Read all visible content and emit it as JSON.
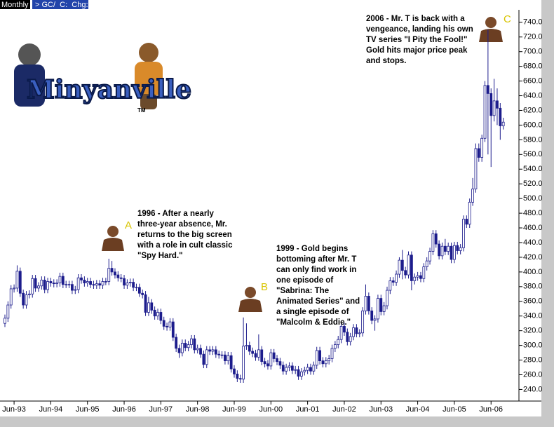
{
  "toolbar": {
    "period": "Monthly",
    "symbol": "> GC/  C:  Chg:"
  },
  "logo": {
    "name": "Minyanville",
    "trademark": "TM"
  },
  "chart_data": {
    "type": "candlestick",
    "color": "#1c1c8c",
    "categories": [
      null,
      null,
      null,
      "Jun-93",
      null,
      null,
      null,
      null,
      null,
      null,
      null,
      null,
      null,
      null,
      null,
      "Jun-94",
      null,
      null,
      null,
      null,
      null,
      null,
      null,
      null,
      null,
      null,
      null,
      "Jun-95",
      null,
      null,
      null,
      null,
      null,
      null,
      null,
      null,
      null,
      null,
      null,
      "Jun-96",
      null,
      null,
      null,
      null,
      null,
      null,
      null,
      null,
      null,
      null,
      null,
      "Jun-97",
      null,
      null,
      null,
      null,
      null,
      null,
      null,
      null,
      null,
      null,
      null,
      "Jun-98",
      null,
      null,
      null,
      null,
      null,
      null,
      null,
      null,
      null,
      null,
      null,
      "Jun-99",
      null,
      null,
      null,
      null,
      null,
      null,
      null,
      null,
      null,
      null,
      null,
      "Jun-00",
      null,
      null,
      null,
      null,
      null,
      null,
      null,
      null,
      null,
      null,
      null,
      "Jun-01",
      null,
      null,
      null,
      null,
      null,
      null,
      null,
      null,
      null,
      null,
      null,
      "Jun-02",
      null,
      null,
      null,
      null,
      null,
      null,
      null,
      null,
      null,
      null,
      null,
      "Jun-03",
      null,
      null,
      null,
      null,
      null,
      null,
      null,
      null,
      null,
      null,
      null,
      "Jun-04",
      null,
      null,
      null,
      null,
      null,
      null,
      null,
      null,
      null,
      null,
      null,
      "Jun-05",
      null,
      null,
      null,
      null,
      null,
      null,
      null,
      null,
      null,
      null,
      null,
      "Jun-06",
      null,
      null,
      null,
      null
    ],
    "open": [
      330,
      337,
      355,
      377,
      378,
      401,
      371,
      355,
      369,
      370,
      391,
      378,
      381,
      389,
      376,
      387,
      385,
      384,
      385,
      394,
      383,
      383,
      383,
      375,
      376,
      392,
      389,
      385,
      387,
      383,
      382,
      384,
      382,
      387,
      387,
      405,
      400,
      396,
      392,
      391,
      382,
      385,
      386,
      379,
      379,
      371,
      369,
      345,
      358,
      348,
      340,
      345,
      334,
      326,
      325,
      332,
      311,
      296,
      290,
      303,
      297,
      301,
      309,
      294,
      296,
      288,
      274,
      294,
      292,
      294,
      288,
      287,
      287,
      279,
      286,
      268,
      261,
      255,
      254,
      299,
      300,
      292,
      289,
      284,
      294,
      278,
      275,
      272,
      290,
      282,
      278,
      273,
      265,
      270,
      272,
      266,
      267,
      258,
      264,
      266,
      270,
      265,
      273,
      293,
      279,
      275,
      279,
      282,
      296,
      301,
      308,
      326,
      318,
      305,
      312,
      324,
      316,
      317,
      347,
      367,
      347,
      334,
      336,
      364,
      346,
      354,
      375,
      388,
      386,
      397,
      416,
      402,
      396,
      423,
      388,
      393,
      395,
      391,
      407,
      415,
      428,
      452,
      438,
      422,
      435,
      428,
      435,
      417,
      436,
      429,
      433,
      472,
      465,
      495,
      513,
      568,
      556,
      582,
      654,
      643,
      613,
      633,
      623,
      599
    ],
    "high": [
      342,
      360,
      382,
      383,
      409,
      406,
      376,
      374,
      375,
      396,
      396,
      386,
      394,
      394,
      392,
      392,
      390,
      390,
      399,
      399,
      388,
      388,
      388,
      381,
      397,
      397,
      394,
      392,
      392,
      388,
      389,
      389,
      392,
      392,
      418,
      415,
      405,
      401,
      397,
      396,
      390,
      391,
      391,
      384,
      384,
      376,
      374,
      366,
      363,
      353,
      350,
      350,
      339,
      331,
      337,
      337,
      316,
      301,
      308,
      308,
      306,
      314,
      314,
      301,
      301,
      293,
      299,
      299,
      299,
      299,
      293,
      292,
      292,
      291,
      291,
      273,
      266,
      260,
      338,
      330,
      305,
      297,
      294,
      315,
      299,
      283,
      280,
      295,
      295,
      287,
      283,
      278,
      275,
      277,
      277,
      272,
      272,
      269,
      271,
      275,
      275,
      278,
      298,
      298,
      284,
      284,
      287,
      301,
      306,
      313,
      331,
      331,
      323,
      317,
      329,
      329,
      322,
      352,
      383,
      372,
      352,
      341,
      369,
      369,
      359,
      380,
      393,
      393,
      402,
      420,
      430,
      407,
      428,
      428,
      398,
      400,
      400,
      412,
      420,
      433,
      457,
      457,
      443,
      440,
      445,
      440,
      440,
      441,
      441,
      438,
      477,
      477,
      500,
      528,
      575,
      575,
      587,
      660,
      730,
      650,
      663,
      650,
      630,
      610
    ],
    "low": [
      325,
      332,
      350,
      372,
      373,
      366,
      350,
      350,
      364,
      365,
      373,
      373,
      376,
      371,
      371,
      380,
      379,
      379,
      380,
      378,
      378,
      378,
      370,
      370,
      371,
      384,
      380,
      380,
      378,
      377,
      377,
      377,
      377,
      382,
      382,
      395,
      391,
      387,
      386,
      377,
      377,
      380,
      374,
      374,
      366,
      364,
      340,
      340,
      343,
      335,
      335,
      329,
      321,
      320,
      320,
      306,
      291,
      283,
      285,
      292,
      292,
      296,
      289,
      289,
      283,
      269,
      269,
      287,
      287,
      283,
      282,
      282,
      274,
      274,
      263,
      256,
      250,
      249,
      249,
      294,
      287,
      284,
      279,
      279,
      273,
      270,
      267,
      267,
      277,
      273,
      268,
      260,
      260,
      265,
      261,
      261,
      253,
      253,
      259,
      261,
      260,
      260,
      268,
      274,
      270,
      270,
      274,
      277,
      291,
      296,
      303,
      313,
      300,
      300,
      307,
      311,
      311,
      312,
      342,
      342,
      329,
      320,
      331,
      341,
      341,
      349,
      370,
      381,
      381,
      392,
      390,
      391,
      391,
      375,
      383,
      388,
      386,
      386,
      402,
      410,
      423,
      433,
      417,
      417,
      423,
      423,
      412,
      412,
      424,
      424,
      428,
      460,
      460,
      490,
      508,
      550,
      550,
      577,
      560,
      543,
      605,
      600,
      580,
      594
    ],
    "close": [
      337,
      355,
      377,
      378,
      401,
      371,
      355,
      369,
      370,
      391,
      378,
      381,
      389,
      376,
      387,
      385,
      384,
      385,
      394,
      383,
      383,
      383,
      375,
      376,
      392,
      389,
      385,
      387,
      383,
      382,
      384,
      382,
      387,
      387,
      405,
      400,
      396,
      392,
      391,
      382,
      385,
      386,
      379,
      379,
      371,
      369,
      345,
      358,
      348,
      340,
      345,
      334,
      326,
      325,
      332,
      311,
      296,
      290,
      303,
      297,
      301,
      309,
      294,
      296,
      288,
      274,
      294,
      292,
      294,
      288,
      287,
      287,
      279,
      286,
      268,
      261,
      255,
      254,
      299,
      300,
      292,
      289,
      284,
      294,
      278,
      275,
      272,
      290,
      282,
      278,
      273,
      265,
      270,
      272,
      266,
      267,
      258,
      264,
      266,
      270,
      265,
      273,
      293,
      279,
      275,
      279,
      282,
      296,
      301,
      308,
      326,
      318,
      305,
      312,
      324,
      316,
      317,
      347,
      367,
      347,
      334,
      336,
      364,
      346,
      354,
      375,
      388,
      386,
      397,
      416,
      402,
      396,
      423,
      388,
      393,
      395,
      391,
      407,
      415,
      428,
      452,
      438,
      422,
      435,
      428,
      435,
      417,
      436,
      429,
      433,
      472,
      465,
      495,
      513,
      568,
      556,
      582,
      654,
      643,
      613,
      633,
      623,
      599,
      604
    ],
    "ylim": [
      228,
      757
    ],
    "yticks": [
      {
        "value": 240,
        "label": "240.0"
      },
      {
        "value": 260,
        "label": "260.0"
      },
      {
        "value": 280,
        "label": "280.0"
      },
      {
        "value": 300,
        "label": "300.0"
      },
      {
        "value": 320,
        "label": "320.0"
      },
      {
        "value": 340,
        "label": "340.0"
      },
      {
        "value": 360,
        "label": "360.0"
      },
      {
        "value": 380,
        "label": "380.0"
      },
      {
        "value": 400,
        "label": "400.0"
      },
      {
        "value": 420,
        "label": "420.0"
      },
      {
        "value": 440,
        "label": "440.0"
      },
      {
        "value": 460,
        "label": "460.0"
      },
      {
        "value": 480,
        "label": "480.0"
      },
      {
        "value": 500,
        "label": "500.0"
      },
      {
        "value": 520,
        "label": "520.0"
      },
      {
        "value": 540,
        "label": "540.0"
      },
      {
        "value": 560,
        "label": "560.0"
      },
      {
        "value": 580,
        "label": "580.0"
      },
      {
        "value": 600,
        "label": "600.0"
      },
      {
        "value": 620,
        "label": "620.0"
      },
      {
        "value": 640,
        "label": "640.0"
      },
      {
        "value": 660,
        "label": "660.0"
      },
      {
        "value": 680,
        "label": "680.0"
      },
      {
        "value": 700,
        "label": "700.0"
      },
      {
        "value": 720,
        "label": "720.0"
      },
      {
        "value": 740,
        "label": "740.0"
      }
    ],
    "annotations": [
      {
        "letter": "A",
        "lines": [
          "1996 - After a nearly",
          "three-year absence, Mr.",
          "returns to the big screen",
          "with a role in cult classic",
          "\"Spy Hard.\""
        ]
      },
      {
        "letter": "B",
        "lines": [
          "1999 - Gold begins",
          "bottoming after Mr. T",
          "can only find work in",
          "one episode of",
          "\"Sabrina: The",
          "Animated Series\" and",
          "a single episode of",
          "\"Malcolm & Eddie.\""
        ]
      },
      {
        "letter": "C",
        "lines": [
          "2006 - Mr. T is back with a",
          "vengeance, landing his own",
          "TV series \"I Pity the Fool!\"",
          "Gold hits major price peak",
          "and stops."
        ]
      }
    ]
  }
}
